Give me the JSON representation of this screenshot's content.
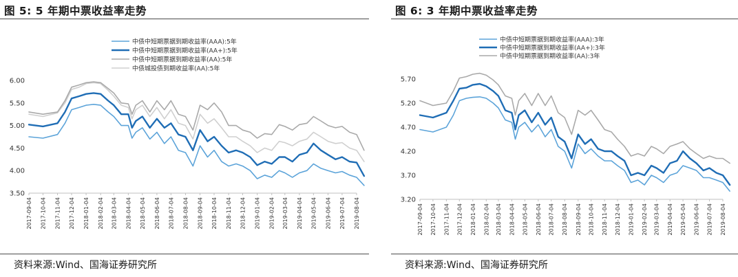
{
  "figures": [
    {
      "title": "图 5:  5 年期中票收益率走势",
      "source": "资料来源:Wind、国海证券研究所",
      "chart_data": {
        "type": "line",
        "ylim": [
          3.5,
          6.0
        ],
        "yticks": [
          "6.00",
          "5.50",
          "5.00",
          "4.50",
          "4.00",
          "3.50"
        ],
        "grid": false,
        "legend": "top",
        "xticks": [
          "2017-09-04",
          "2017-10-04",
          "2017-11-04",
          "2017-12-04",
          "2018-01-04",
          "2018-02-04",
          "2018-03-04",
          "2018-04-04",
          "2018-05-04",
          "2018-06-04",
          "2018-07-04",
          "2018-08-04",
          "2018-09-04",
          "2018-10-04",
          "2018-11-04",
          "2018-12-04",
          "2019-01-04",
          "2019-02-04",
          "2019-03-04",
          "2019-04-04",
          "2019-05-04",
          "2019-06-04",
          "2019-07-04",
          "2019-08-04"
        ],
        "x": [
          "2017-09-04",
          "2017-10-04",
          "2017-11-04",
          "2017-11-20",
          "2017-12-04",
          "2017-12-20",
          "2018-01-04",
          "2018-01-20",
          "2018-02-04",
          "2018-02-20",
          "2018-03-04",
          "2018-03-20",
          "2018-04-04",
          "2018-04-12",
          "2018-04-20",
          "2018-05-04",
          "2018-05-20",
          "2018-06-04",
          "2018-06-20",
          "2018-07-04",
          "2018-07-20",
          "2018-08-04",
          "2018-08-20",
          "2018-09-04",
          "2018-09-20",
          "2018-10-04",
          "2018-10-20",
          "2018-11-04",
          "2018-11-20",
          "2018-12-04",
          "2018-12-20",
          "2019-01-04",
          "2019-01-20",
          "2019-02-04",
          "2019-02-20",
          "2019-03-04",
          "2019-03-20",
          "2019-04-04",
          "2019-04-20",
          "2019-05-04",
          "2019-05-20",
          "2019-06-04",
          "2019-06-20",
          "2019-07-04",
          "2019-07-20",
          "2019-08-04",
          "2019-08-20"
        ],
        "series": [
          {
            "name": "中债中短期票据到期收益率(AAA):5年",
            "color": "#5ba3d9",
            "width": 1.6,
            "values": [
              4.75,
              4.72,
              4.8,
              5.05,
              5.35,
              5.4,
              5.45,
              5.47,
              5.45,
              5.3,
              5.2,
              5.0,
              5.0,
              4.72,
              4.85,
              4.95,
              4.7,
              4.85,
              4.6,
              4.75,
              4.45,
              4.4,
              4.1,
              4.55,
              4.3,
              4.45,
              4.2,
              4.1,
              4.15,
              4.1,
              4.0,
              3.82,
              3.9,
              3.85,
              4.0,
              3.95,
              3.85,
              3.95,
              4.0,
              4.15,
              4.05,
              4.0,
              3.95,
              3.98,
              3.9,
              3.85,
              3.67
            ]
          },
          {
            "name": "中债中短期票据到期收益率(AA+):5年",
            "color": "#1f6db5",
            "width": 2.4,
            "values": [
              5.02,
              4.98,
              5.05,
              5.3,
              5.6,
              5.65,
              5.7,
              5.72,
              5.7,
              5.55,
              5.45,
              5.25,
              5.25,
              4.95,
              5.1,
              5.2,
              4.95,
              5.15,
              4.95,
              5.05,
              4.8,
              4.75,
              4.45,
              4.9,
              4.65,
              4.75,
              4.55,
              4.4,
              4.45,
              4.4,
              4.3,
              4.12,
              4.2,
              4.15,
              4.3,
              4.3,
              4.2,
              4.35,
              4.4,
              4.6,
              4.45,
              4.35,
              4.25,
              4.3,
              4.2,
              4.18,
              3.88
            ]
          },
          {
            "name": "中债中短期票据到期收益率(AA):5年",
            "color": "#a9a9a9",
            "width": 1.6,
            "values": [
              5.3,
              5.25,
              5.3,
              5.55,
              5.85,
              5.9,
              5.95,
              5.97,
              5.95,
              5.82,
              5.72,
              5.5,
              5.48,
              5.25,
              5.45,
              5.55,
              5.3,
              5.55,
              5.35,
              5.55,
              5.25,
              5.2,
              4.9,
              5.45,
              5.35,
              5.5,
              5.3,
              5.0,
              5.0,
              4.9,
              4.85,
              4.72,
              4.82,
              4.8,
              5.02,
              4.98,
              4.9,
              5.02,
              5.05,
              5.2,
              5.1,
              5.0,
              4.95,
              4.98,
              4.85,
              4.8,
              4.45
            ]
          },
          {
            "name": "中债城投债到期收益率(AA):5年",
            "color": "#cfcfcf",
            "width": 1.6,
            "values": [
              5.25,
              5.2,
              5.28,
              5.5,
              5.8,
              5.85,
              5.93,
              5.95,
              5.93,
              5.78,
              5.65,
              5.45,
              5.4,
              5.15,
              5.35,
              5.45,
              5.2,
              5.4,
              5.15,
              5.35,
              5.05,
              5.0,
              4.7,
              5.25,
              5.05,
              5.15,
              4.95,
              4.75,
              4.75,
              4.65,
              4.55,
              4.4,
              4.5,
              4.45,
              4.65,
              4.62,
              4.55,
              4.65,
              4.7,
              4.85,
              4.75,
              4.65,
              4.6,
              4.62,
              4.5,
              4.45,
              4.2
            ]
          }
        ]
      }
    },
    {
      "title": "图 6:  3 年期中票收益率走势",
      "source": "资料来源:Wind、国海证券研究所",
      "chart_data": {
        "type": "line",
        "ylim": [
          3.2,
          5.7
        ],
        "yticks": [
          "5.70",
          "5.20",
          "4.70",
          "4.20",
          "3.70",
          "3.20"
        ],
        "grid": false,
        "legend": "top",
        "xticks": [
          "2017-09-04",
          "2017-10-04",
          "2017-11-04",
          "2017-12-04",
          "2018-01-04",
          "2018-02-04",
          "2018-03-04",
          "2018-04-04",
          "2018-05-04",
          "2018-06-04",
          "2018-07-04",
          "2018-08-04",
          "2018-09-04",
          "2018-10-04",
          "2018-11-04",
          "2018-12-04",
          "2019-01-04",
          "2019-02-04",
          "2019-03-04",
          "2019-04-04",
          "2019-05-04",
          "2019-06-04",
          "2019-07-04",
          "2019-08-04"
        ],
        "x": [
          "2017-09-04",
          "2017-10-04",
          "2017-11-04",
          "2017-11-20",
          "2017-12-04",
          "2017-12-20",
          "2018-01-04",
          "2018-01-20",
          "2018-02-04",
          "2018-02-20",
          "2018-03-04",
          "2018-03-20",
          "2018-04-04",
          "2018-04-12",
          "2018-04-20",
          "2018-05-04",
          "2018-05-20",
          "2018-06-04",
          "2018-06-20",
          "2018-07-04",
          "2018-07-20",
          "2018-08-04",
          "2018-08-20",
          "2018-09-04",
          "2018-09-20",
          "2018-10-04",
          "2018-10-20",
          "2018-11-04",
          "2018-11-20",
          "2018-12-04",
          "2018-12-20",
          "2019-01-04",
          "2019-01-20",
          "2019-02-04",
          "2019-02-20",
          "2019-03-04",
          "2019-03-20",
          "2019-04-04",
          "2019-04-20",
          "2019-05-04",
          "2019-05-20",
          "2019-06-04",
          "2019-06-20",
          "2019-07-04",
          "2019-07-20",
          "2019-08-04",
          "2019-08-20"
        ],
        "series": [
          {
            "name": "中债中短期票据到期收益率(AAA):3年",
            "color": "#5ba3d9",
            "width": 1.6,
            "values": [
              4.65,
              4.6,
              4.7,
              4.95,
              5.25,
              5.3,
              5.32,
              5.33,
              5.3,
              5.2,
              5.1,
              4.85,
              4.8,
              4.45,
              4.7,
              4.8,
              4.6,
              4.75,
              4.5,
              4.65,
              4.3,
              4.2,
              3.85,
              4.35,
              4.15,
              4.25,
              4.1,
              4.0,
              4.0,
              3.9,
              3.8,
              3.55,
              3.6,
              3.5,
              3.7,
              3.65,
              3.55,
              3.7,
              3.75,
              3.9,
              3.85,
              3.8,
              3.65,
              3.65,
              3.6,
              3.55,
              3.37
            ]
          },
          {
            "name": "中债中短期票据到期收益率(AA+):3年",
            "color": "#1f6db5",
            "width": 2.4,
            "values": [
              4.95,
              4.9,
              5.0,
              5.25,
              5.5,
              5.52,
              5.58,
              5.6,
              5.55,
              5.45,
              5.35,
              5.05,
              5.0,
              4.65,
              4.95,
              5.05,
              4.8,
              5.0,
              4.75,
              4.9,
              4.5,
              4.4,
              4.05,
              4.55,
              4.35,
              4.45,
              4.25,
              4.2,
              4.2,
              4.1,
              4.0,
              3.7,
              3.75,
              3.7,
              3.9,
              3.85,
              3.75,
              3.95,
              4.0,
              4.2,
              4.05,
              3.95,
              3.8,
              3.85,
              3.75,
              3.7,
              3.5
            ]
          },
          {
            "name": "中债中短期票据到期收益率(AA):3年",
            "color": "#a9a9a9",
            "width": 1.6,
            "values": [
              5.25,
              5.15,
              5.2,
              5.45,
              5.72,
              5.75,
              5.8,
              5.82,
              5.78,
              5.68,
              5.58,
              5.35,
              5.3,
              4.95,
              5.25,
              5.4,
              5.15,
              5.4,
              5.15,
              5.35,
              5.0,
              4.9,
              4.55,
              5.05,
              4.95,
              5.05,
              4.85,
              4.65,
              4.6,
              4.45,
              4.3,
              4.1,
              4.15,
              4.1,
              4.3,
              4.25,
              4.15,
              4.3,
              4.35,
              4.4,
              4.25,
              4.15,
              4.05,
              4.1,
              4.05,
              4.05,
              3.95
            ]
          }
        ]
      }
    }
  ]
}
